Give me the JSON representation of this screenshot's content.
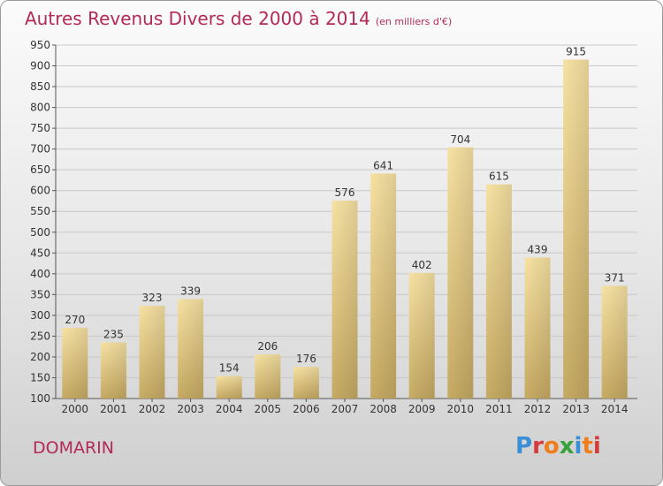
{
  "header": {
    "title": "Autres Revenus Divers de 2000 à 2014",
    "subtitle": "(en milliers d'€)"
  },
  "footer": {
    "place": "DOMARIN",
    "brand": "Proxiti"
  },
  "colors": {
    "title": "#b22a55",
    "bar_light": "#f6df9e",
    "bar_dark": "#c9ad66",
    "grid": "#c8c8c8"
  },
  "chart_data": {
    "type": "bar",
    "title": "Autres Revenus Divers de 2000 à 2014",
    "subtitle": "(en milliers d'€)",
    "xlabel": "",
    "ylabel": "",
    "categories": [
      "2000",
      "2001",
      "2002",
      "2003",
      "2004",
      "2005",
      "2006",
      "2007",
      "2008",
      "2009",
      "2010",
      "2011",
      "2012",
      "2013",
      "2014"
    ],
    "values": [
      270,
      235,
      323,
      339,
      154,
      206,
      176,
      576,
      641,
      402,
      704,
      615,
      439,
      915,
      371
    ],
    "ylim": [
      100,
      950
    ],
    "yticks": [
      100,
      150,
      200,
      250,
      300,
      350,
      400,
      450,
      500,
      550,
      600,
      650,
      700,
      750,
      800,
      850,
      900,
      950
    ],
    "grid": true,
    "legend": "none"
  }
}
